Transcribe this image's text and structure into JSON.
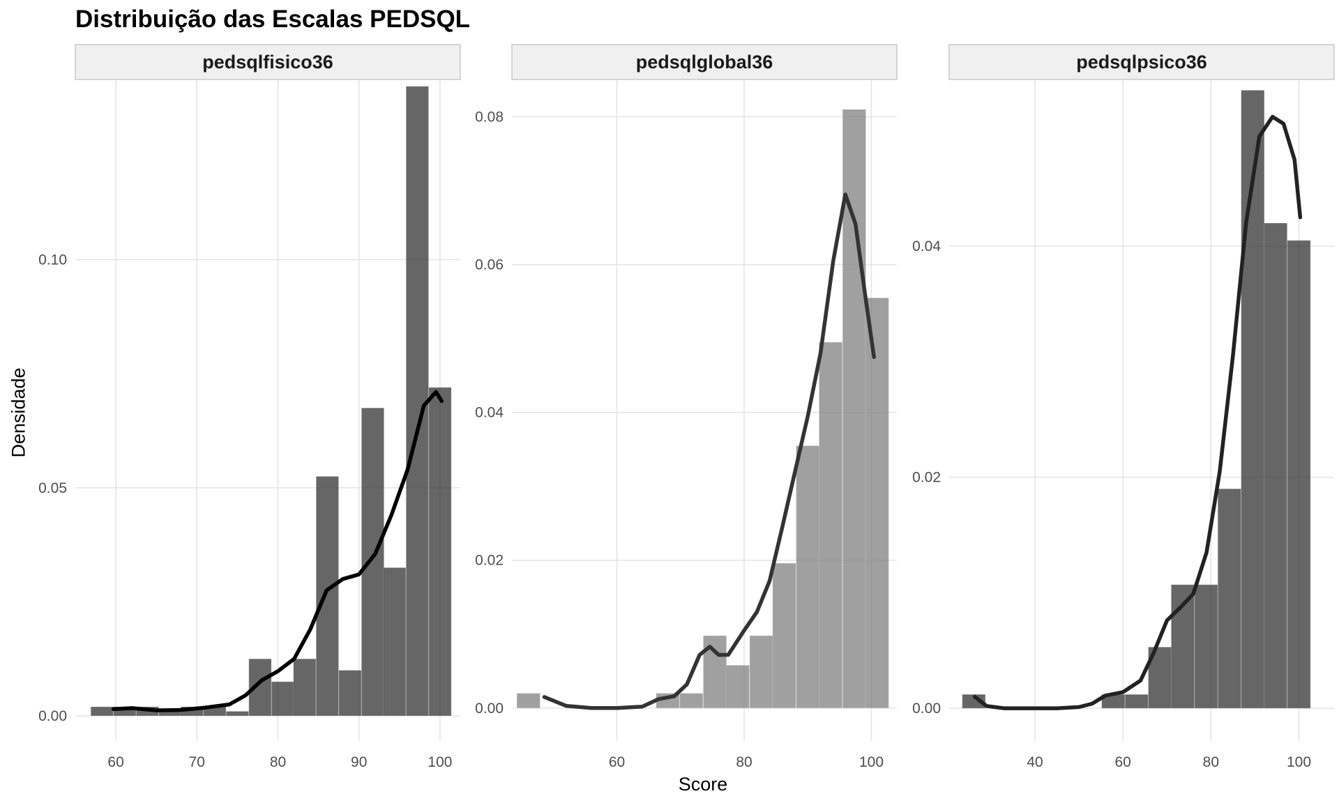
{
  "title": "Distribuição das Escalas PEDSQL",
  "xlabel": "Score",
  "ylabel": "Densidade",
  "chart_data": [
    {
      "type": "bar",
      "panel": "pedsqlfisico36",
      "xlim": [
        55,
        102.5
      ],
      "ylim": [
        -0.0055,
        0.1395
      ],
      "x_ticks": [
        60,
        70,
        80,
        90,
        100
      ],
      "y_ticks": [
        0.0,
        0.05,
        0.1
      ],
      "y_tick_labels": [
        "0.00",
        "0.05",
        "0.10"
      ],
      "bin_width": 2.78,
      "bin_centers": [
        58.3,
        61.1,
        63.9,
        66.7,
        69.4,
        72.2,
        75.0,
        77.8,
        80.6,
        83.3,
        86.1,
        88.9,
        91.7,
        94.4,
        97.2,
        100.0
      ],
      "histogram": [
        0.002,
        0.002,
        0.002,
        0.001,
        0.002,
        0.002,
        0.001,
        0.0125,
        0.0075,
        0.0125,
        0.0525,
        0.01,
        0.0675,
        0.0325,
        0.138,
        0.072
      ],
      "density_x": [
        59.7,
        62,
        65,
        68,
        71,
        74,
        76,
        78,
        80,
        82,
        84,
        86,
        88,
        90,
        92,
        94,
        96,
        98,
        99.5,
        100.2
      ],
      "density_y": [
        0.0015,
        0.0017,
        0.0012,
        0.0013,
        0.0018,
        0.0025,
        0.0045,
        0.0078,
        0.0098,
        0.0125,
        0.019,
        0.0275,
        0.03,
        0.031,
        0.0355,
        0.044,
        0.054,
        0.068,
        0.071,
        0.069
      ],
      "bar_color": "#333333",
      "line_color": "#000000"
    },
    {
      "type": "bar",
      "panel": "pedsqlglobal36",
      "xlim": [
        43.5,
        104
      ],
      "ylim": [
        -0.00445,
        0.08505
      ],
      "x_ticks": [
        60,
        80,
        100
      ],
      "y_ticks": [
        0.0,
        0.02,
        0.04,
        0.06,
        0.08
      ],
      "y_tick_labels": [
        "0.00",
        "0.02",
        "0.04",
        "0.06",
        "0.08"
      ],
      "bin_width": 3.65,
      "bin_centers": [
        46.1,
        49.8,
        53.4,
        57.1,
        60.7,
        64.4,
        68.0,
        71.7,
        75.4,
        79.0,
        82.7,
        86.3,
        90.0,
        93.6,
        97.3,
        100.9
      ],
      "histogram": [
        0.002,
        0,
        0,
        0,
        0,
        0,
        0.002,
        0.002,
        0.0098,
        0.0058,
        0.0098,
        0.0196,
        0.0355,
        0.0495,
        0.081,
        0.0555
      ],
      "density_x": [
        48.6,
        52,
        56,
        60,
        64,
        66.5,
        69,
        71,
        73,
        74.6,
        76,
        77.5,
        80,
        82,
        84,
        86,
        88,
        90,
        92,
        94,
        95.9,
        97.5,
        99,
        100.4
      ],
      "density_y": [
        0.0015,
        0.0003,
        0,
        0,
        0.0002,
        0.0012,
        0.0016,
        0.0032,
        0.0072,
        0.0083,
        0.0072,
        0.0072,
        0.0105,
        0.013,
        0.0172,
        0.0245,
        0.032,
        0.0395,
        0.048,
        0.0605,
        0.0695,
        0.0655,
        0.056,
        0.0475
      ],
      "bar_color": "#808080",
      "line_color": "#333333"
    },
    {
      "type": "bar",
      "panel": "pedsqlpsico36",
      "xlim": [
        20.5,
        108
      ],
      "ylim": [
        -0.00283,
        0.05443
      ],
      "x_ticks": [
        40,
        60,
        80,
        100
      ],
      "y_ticks": [
        0.0,
        0.02,
        0.04
      ],
      "y_tick_labels": [
        "0.00",
        "0.02",
        "0.04"
      ],
      "bin_width": 5.27,
      "bin_centers": [
        26.1,
        31.4,
        36.7,
        42.0,
        47.3,
        52.5,
        57.8,
        63.1,
        68.4,
        73.6,
        78.9,
        84.2,
        89.5,
        94.7,
        100.0,
        105.3
      ],
      "histogram": [
        0.0012,
        0,
        0,
        0,
        0,
        0,
        0.0012,
        0.0012,
        0.0053,
        0.0107,
        0.0107,
        0.019,
        0.0535,
        0.042,
        0.0405,
        0
      ],
      "density_x": [
        26.3,
        29,
        33,
        38,
        45,
        50,
        53,
        56,
        60,
        64,
        67,
        70,
        73,
        76,
        79,
        82,
        85,
        88,
        91,
        94,
        96.5,
        99,
        100.3
      ],
      "density_y": [
        0.001,
        0.0002,
        0,
        0,
        0,
        0.0001,
        0.0004,
        0.0011,
        0.0014,
        0.0024,
        0.0048,
        0.0076,
        0.0087,
        0.0099,
        0.0135,
        0.0205,
        0.0305,
        0.042,
        0.0495,
        0.0512,
        0.0506,
        0.0475,
        0.0425
      ],
      "bar_color": "#333333",
      "line_color": "#222222"
    }
  ]
}
